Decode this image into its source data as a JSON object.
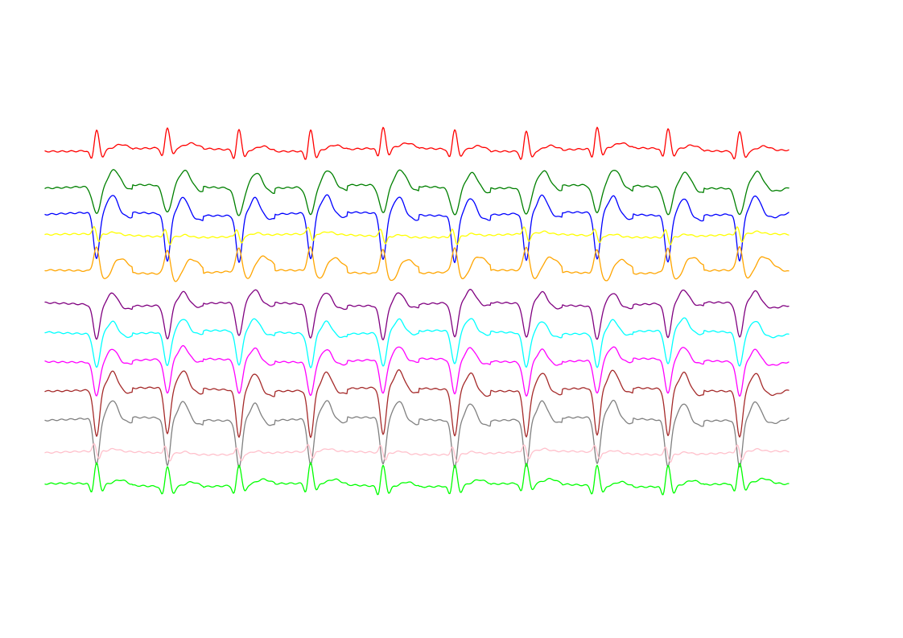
{
  "chart_data": {
    "type": "line",
    "title": "",
    "xlabel": "",
    "ylabel": "",
    "axes_visible": false,
    "grid": false,
    "legend": "none",
    "beat_count": 10,
    "series": [
      {
        "color": "#ff0000",
        "morph": "upright"
      },
      {
        "color": "#008000",
        "morph": "inverted_wide"
      },
      {
        "color": "#0000ff",
        "morph": "inverted_deep"
      },
      {
        "color": "#ffff00",
        "morph": "small_biphasic"
      },
      {
        "color": "#ffa500",
        "morph": "upright_wide"
      },
      {
        "color": "#800080",
        "morph": "inverted"
      },
      {
        "color": "#00ffff",
        "morph": "inverted"
      },
      {
        "color": "#ff00ff",
        "morph": "inverted"
      },
      {
        "color": "#a52a2a",
        "morph": "inverted_deep"
      },
      {
        "color": "#808080",
        "morph": "inverted_deep"
      },
      {
        "color": "#ffc0cb",
        "morph": "small_biphasic"
      },
      {
        "color": "#00ff00",
        "morph": "upright"
      }
    ]
  }
}
